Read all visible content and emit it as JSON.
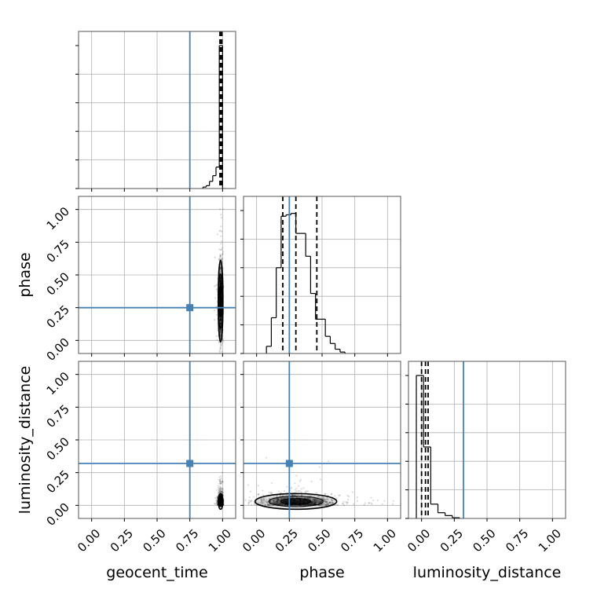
{
  "chart_data": {
    "type": "corner",
    "parameters": [
      "geocent_time",
      "phase",
      "luminosity_distance"
    ],
    "axis_labels": {
      "geocent_time": "geocent_time",
      "phase": "phase",
      "luminosity_distance": "luminosity_distance"
    },
    "axis_range": [
      -0.1,
      1.1
    ],
    "ticks": [
      0.0,
      0.25,
      0.5,
      0.75,
      1.0
    ],
    "tick_labels": [
      "0.00",
      "0.25",
      "0.50",
      "0.75",
      "1.00"
    ],
    "grid": true,
    "injection": {
      "geocent_time": 0.75,
      "phase": 0.25,
      "luminosity_distance": 0.32,
      "color": "#4682b4"
    },
    "histograms": {
      "geocent_time": {
        "bin_width": 0.025,
        "bins": [
          {
            "x0": 0.85,
            "h": 0.01
          },
          {
            "x0": 0.875,
            "h": 0.02
          },
          {
            "x0": 0.9,
            "h": 0.05
          },
          {
            "x0": 0.925,
            "h": 0.09
          },
          {
            "x0": 0.95,
            "h": 0.15
          },
          {
            "x0": 0.975,
            "h": 1.0
          },
          {
            "x0": 1.0,
            "h": 0.0
          }
        ],
        "quantiles": [
          0.98,
          0.985,
          0.995
        ]
      },
      "phase": {
        "bin_width": 0.0375,
        "bins": [
          {
            "x0": 0.075,
            "h": 0.05
          },
          {
            "x0": 0.1125,
            "h": 0.25
          },
          {
            "x0": 0.15,
            "h": 0.6
          },
          {
            "x0": 0.1875,
            "h": 0.96
          },
          {
            "x0": 0.225,
            "h": 0.97
          },
          {
            "x0": 0.2625,
            "h": 0.98
          },
          {
            "x0": 0.3,
            "h": 0.84
          },
          {
            "x0": 0.3375,
            "h": 0.84
          },
          {
            "x0": 0.375,
            "h": 0.68
          },
          {
            "x0": 0.4125,
            "h": 0.42
          },
          {
            "x0": 0.45,
            "h": 0.24
          },
          {
            "x0": 0.4875,
            "h": 0.24
          },
          {
            "x0": 0.525,
            "h": 0.12
          },
          {
            "x0": 0.5625,
            "h": 0.07
          },
          {
            "x0": 0.6,
            "h": 0.03
          },
          {
            "x0": 0.6375,
            "h": 0.01
          }
        ],
        "quantiles": [
          0.2,
          0.3,
          0.46
        ]
      },
      "luminosity_distance": {
        "bin_width": 0.055,
        "bins": [
          {
            "x0": -0.04,
            "h": 1.0
          },
          {
            "x0": 0.015,
            "h": 0.5
          },
          {
            "x0": 0.07,
            "h": 0.1
          },
          {
            "x0": 0.125,
            "h": 0.04
          },
          {
            "x0": 0.18,
            "h": 0.02
          },
          {
            "x0": 0.235,
            "h": 0.005
          }
        ],
        "quantiles": [
          0.0,
          0.03,
          0.05
        ]
      }
    },
    "pairs": [
      {
        "x": "geocent_time",
        "y": "phase"
      },
      {
        "x": "geocent_time",
        "y": "luminosity_distance"
      },
      {
        "x": "phase",
        "y": "luminosity_distance"
      }
    ]
  }
}
